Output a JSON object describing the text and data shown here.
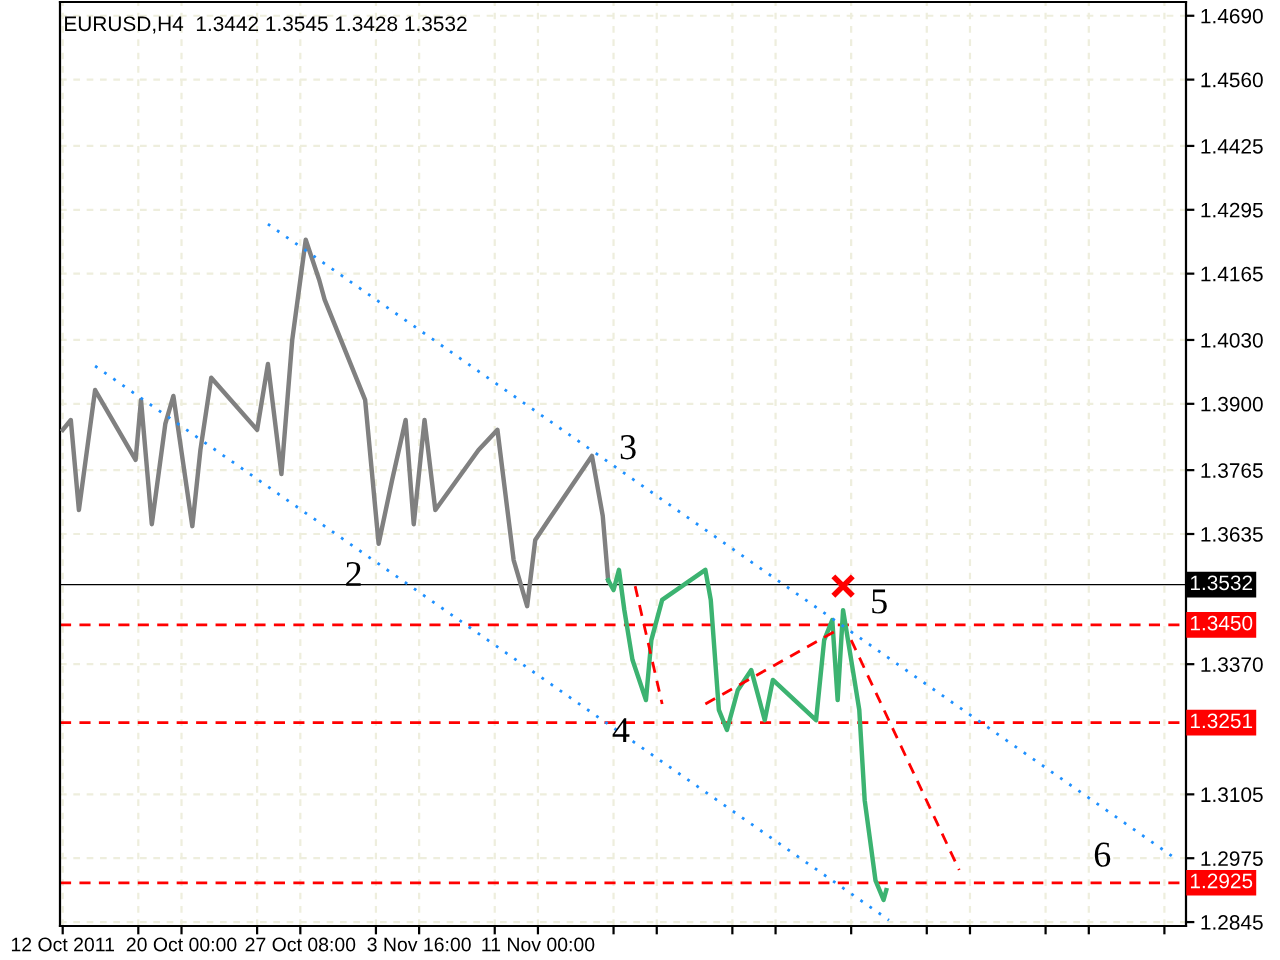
{
  "chart_data": {
    "type": "line",
    "title": "EURUSD,H4  1.3442 1.3545 1.3428 1.3532",
    "xlim": [
      "2011-10-12T12:00",
      "2011-12-21T00:00"
    ],
    "ylim": [
      1.2837,
      1.4718
    ],
    "xticks": [
      {
        "value": "2011-10-12T16:00",
        "label": "12 Oct 2011"
      },
      {
        "value": "2011-10-17T08:00",
        "label": null
      },
      {
        "value": "2011-10-20T00:00",
        "label": "20 Oct 00:00"
      },
      {
        "value": "2011-10-24T16:00",
        "label": null
      },
      {
        "value": "2011-10-27T08:00",
        "label": "27 Oct 08:00"
      },
      {
        "value": "2011-11-01T00:00",
        "label": null
      },
      {
        "value": "2011-11-03T16:00",
        "label": "3 Nov 16:00"
      },
      {
        "value": "2011-11-08T08:00",
        "label": null
      },
      {
        "value": "2011-11-11T00:00",
        "label": "11 Nov 00:00"
      },
      {
        "value": "2011-11-15T16:00",
        "label": null
      },
      {
        "value": "2011-11-18T08:00",
        "label": null
      },
      {
        "value": "2011-11-23T00:00",
        "label": null
      },
      {
        "value": "2011-11-25T16:00",
        "label": null
      },
      {
        "value": "2011-11-30T08:00",
        "label": null
      },
      {
        "value": "2011-12-05T00:00",
        "label": null
      },
      {
        "value": "2011-12-07T16:00",
        "label": null
      },
      {
        "value": "2011-12-12T08:00",
        "label": null
      },
      {
        "value": "2011-12-15T00:00",
        "label": null
      },
      {
        "value": "2011-12-19T16:00",
        "label": null
      }
    ],
    "yticks": [
      {
        "value": 1.469,
        "label": "1.4690"
      },
      {
        "value": 1.456,
        "label": "1.4560"
      },
      1.4425,
      1.4295,
      1.4165,
      {
        "value": 1.403,
        "label": "1.4030"
      },
      {
        "value": 1.39,
        "label": "1.3900"
      },
      1.3765,
      1.3635,
      {
        "value": 1.337,
        "label": "1.3370"
      },
      1.3105,
      1.2975,
      1.2845
    ],
    "grid": true,
    "series": [
      {
        "color": "#808080",
        "x": [
          "2011-10-12T16:00",
          "2011-10-13T04:00",
          "2011-10-13T16:00",
          "2011-10-14T16:00",
          "2011-10-17T04:00",
          "2011-10-17T12:00",
          "2011-10-18T04:00",
          "2011-10-19T00:00",
          "2011-10-19T12:00",
          "2011-10-20T16:00",
          "2011-10-21T04:00",
          "2011-10-21T20:00",
          "2011-10-24T16:00",
          "2011-10-25T08:00",
          "2011-10-26T04:00",
          "2011-10-26T20:00",
          "2011-10-27T16:00",
          "2011-10-28T12:00",
          "2011-10-28T20:00",
          "2011-10-31T08:00",
          "2011-11-01T04:00",
          "2011-11-02T00:00",
          "2011-11-02T20:00",
          "2011-11-03T08:00",
          "2011-11-04T00:00",
          "2011-11-04T16:00",
          "2011-11-07T08:00",
          "2011-11-08T12:00",
          "2011-11-09T12:00",
          "2011-11-10T08:00",
          "2011-11-10T20:00",
          "2011-11-11T16:00",
          "2011-11-14T08:00",
          "2011-11-15T00:00",
          "2011-11-15T08:00"
        ],
        "values": [
          1.3847,
          1.3867,
          1.3684,
          1.3928,
          1.3786,
          1.3908,
          1.3655,
          1.3859,
          1.3916,
          1.3651,
          1.3806,
          1.3953,
          1.3847,
          1.3981,
          1.3757,
          1.403,
          1.4234,
          1.4152,
          1.4112,
          1.3908,
          1.3615,
          1.3745,
          1.3867,
          1.3655,
          1.3867,
          1.3684,
          1.3806,
          1.3847,
          1.3582,
          1.3488,
          1.3623,
          1.3664,
          1.3794,
          1.3672,
          1.3541
        ]
      },
      {
        "color": "#3cb371",
        "x": [
          "2011-11-15T08:00",
          "2011-11-15T16:00",
          "2011-11-16T00:00",
          "2011-11-16T08:00",
          "2011-11-16T20:00",
          "2011-11-17T16:00",
          "2011-11-18T00:00",
          "2011-11-18T16:00",
          "2011-11-21T08:00",
          "2011-11-21T16:00",
          "2011-11-22T04:00",
          "2011-11-22T16:00",
          "2011-11-23T08:00",
          "2011-11-24T04:00",
          "2011-11-25T00:00",
          "2011-11-25T12:00",
          "2011-11-28T04:00",
          "2011-11-28T16:00",
          "2011-11-29T04:00",
          "2011-11-29T12:00",
          "2011-11-29T20:00",
          "2011-11-30T08:00",
          "2011-11-30T20:00",
          "2011-12-01T04:00",
          "2011-12-01T12:00",
          "2011-12-01T20:00",
          "2011-12-02T08:00",
          "2011-12-02T12:00"
        ],
        "values": [
          1.3541,
          1.3521,
          1.3562,
          1.348,
          1.3379,
          1.3297,
          1.3419,
          1.3501,
          1.3562,
          1.3501,
          1.3277,
          1.3236,
          1.3317,
          1.3358,
          1.3256,
          1.3338,
          1.3256,
          1.3419,
          1.346,
          1.3297,
          1.348,
          1.3379,
          1.3277,
          1.3093,
          1.3012,
          1.293,
          1.289,
          1.291
        ]
      },
      {
        "color": "#1e90ff",
        "line_style": "dotted",
        "x": [
          "2011-10-25T08:00",
          "2011-12-20T12:00"
        ],
        "values": [
          1.4266,
          1.2971
        ]
      },
      {
        "color": "#1e90ff",
        "line_style": "dotted",
        "x": [
          "2011-10-14T16:00",
          "2011-12-02T16:00"
        ],
        "values": [
          1.3977,
          1.2849
        ]
      },
      {
        "color": "#ff0000",
        "line_style": "dashed",
        "x": [
          "2011-11-17T00:00",
          "2011-11-18T16:00",
          "2011-11-21T00:00",
          "2011-11-21T08:00",
          "2011-11-29T12:00",
          "2011-11-30T00:00",
          "2011-11-30T08:00",
          "2011-12-07T00:00"
        ],
        "values": [
          1.3529,
          1.3289,
          null,
          1.3289,
          1.344,
          null,
          1.3419,
          1.2951
        ]
      },
      {
        "type": "scatter",
        "color": "#ff0000",
        "marker": "cross",
        "x": [
          "2011-11-29T20:00"
        ],
        "values": [
          1.3529
        ]
      }
    ],
    "ref_lines": [
      {
        "axis": "y",
        "value": 1.3532,
        "label": "1.3532",
        "color": "#000000",
        "line_style": "solid"
      },
      {
        "axis": "y",
        "value": 1.345,
        "label": "1.3450",
        "color": "#ff0000",
        "line_style": "dashed"
      },
      {
        "axis": "y",
        "value": 1.3251,
        "label": "1.3251",
        "color": "#ff0000",
        "line_style": "dashed"
      },
      {
        "axis": "y",
        "value": 1.2925,
        "label": "1.2925",
        "color": "#ff0000",
        "line_style": "dashed"
      }
    ],
    "annotations": [
      {
        "text": "2",
        "x": "2011-11-01T04:00",
        "y": 1.3615
      },
      {
        "text": "3",
        "x": "2011-11-14T08:00",
        "y": 1.3794
      },
      {
        "text": "4",
        "x": "2011-11-17T16:00",
        "y": 1.3297
      },
      {
        "text": "5",
        "x": "2011-11-29T20:00",
        "y": 1.348
      },
      {
        "text": "6",
        "x": "2011-12-15T20:00",
        "y": 1.2925
      }
    ]
  }
}
